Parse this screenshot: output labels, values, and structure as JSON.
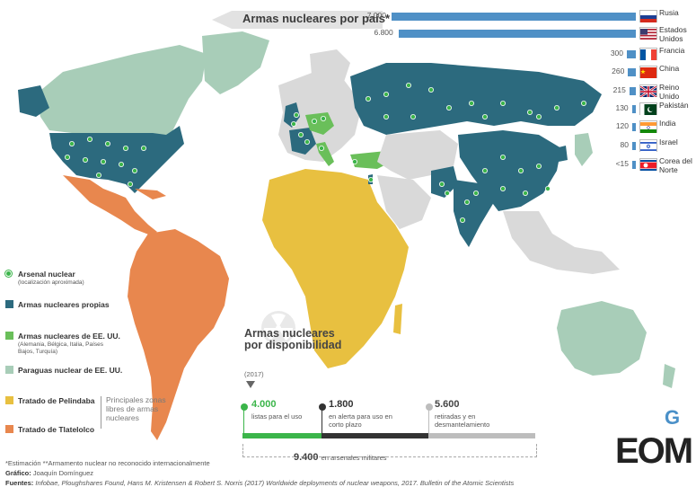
{
  "title": "Armas nucleares por país*",
  "countries": [
    {
      "value": "7.000",
      "amount": 7000,
      "name": "Rusia",
      "flag": "ru"
    },
    {
      "value": "6.800",
      "amount": 6800,
      "name": "Estados Unidos",
      "flag": "us"
    },
    {
      "value": "300",
      "amount": 300,
      "name": "Francia",
      "flag": "fr"
    },
    {
      "value": "260",
      "amount": 260,
      "name": "China",
      "flag": "cn"
    },
    {
      "value": "215",
      "amount": 215,
      "name": "Reino Unido",
      "flag": "uk"
    },
    {
      "value": "130",
      "amount": 130,
      "name": "Pakistán",
      "flag": "pk"
    },
    {
      "value": "120",
      "amount": 120,
      "name": "India",
      "flag": "in"
    },
    {
      "value": "80",
      "amount": 80,
      "name": "Israel",
      "flag": "il"
    },
    {
      "value": "<15",
      "amount": 15,
      "name": "Corea del Norte",
      "flag": "kp"
    }
  ],
  "legend": {
    "arsenal": "Arsenal nuclear",
    "arsenal_sub": "(localización aproximada)",
    "own": "Armas nucleares propias",
    "us_weapons": "Armas nucleares de EE. UU.",
    "us_weapons_sub": "(Alemania, Bélgica, Italia, Países Bajos, Turquía)",
    "umbrella": "Paraguas nuclear de EE. UU.",
    "pelindaba": "Tratado de Pelindaba",
    "tlatelolco": "Tratado de Tlatelolco",
    "zones": "Principales zonas libres de armas nucleares"
  },
  "availability": {
    "title": "Armas nucleares por disponibilidad",
    "year": "(2017)",
    "items": [
      {
        "num": "4.000",
        "desc": "listas para el uso",
        "color": "#3bb54a"
      },
      {
        "num": "1.800",
        "desc": "en alerta para uso en corto plazo",
        "color": "#333333"
      },
      {
        "num": "5.600",
        "desc": "retiradas y en desmantelamiento",
        "color": "#bdbdbd"
      }
    ],
    "total": "9.400",
    "total_desc": "en arsenales militares"
  },
  "footer": {
    "note": "*Estimación   **Armamento nuclear no reconocido internacionalmente",
    "graphic_label": "Gráfico:",
    "graphic": "Joaquín Domínguez",
    "sources_label": "Fuentes:",
    "sources": "Infobae, Ploughshares Found, Hans M. Kristensen & Robert S. Norris (2017) Worldwide deployments of nuclear weapons, 2017. Bulletin of the Atomic Scientists"
  },
  "logo": {
    "main": "EOM",
    "mark": "G"
  },
  "colors": {
    "own": "#2c6a7e",
    "us_weapons": "#6abf5a",
    "umbrella": "#a8cdb8",
    "pelindaba": "#e8c040",
    "tlatelolco": "#e8874e",
    "land": "#d9d9d9",
    "bars": "#4f90c6"
  }
}
